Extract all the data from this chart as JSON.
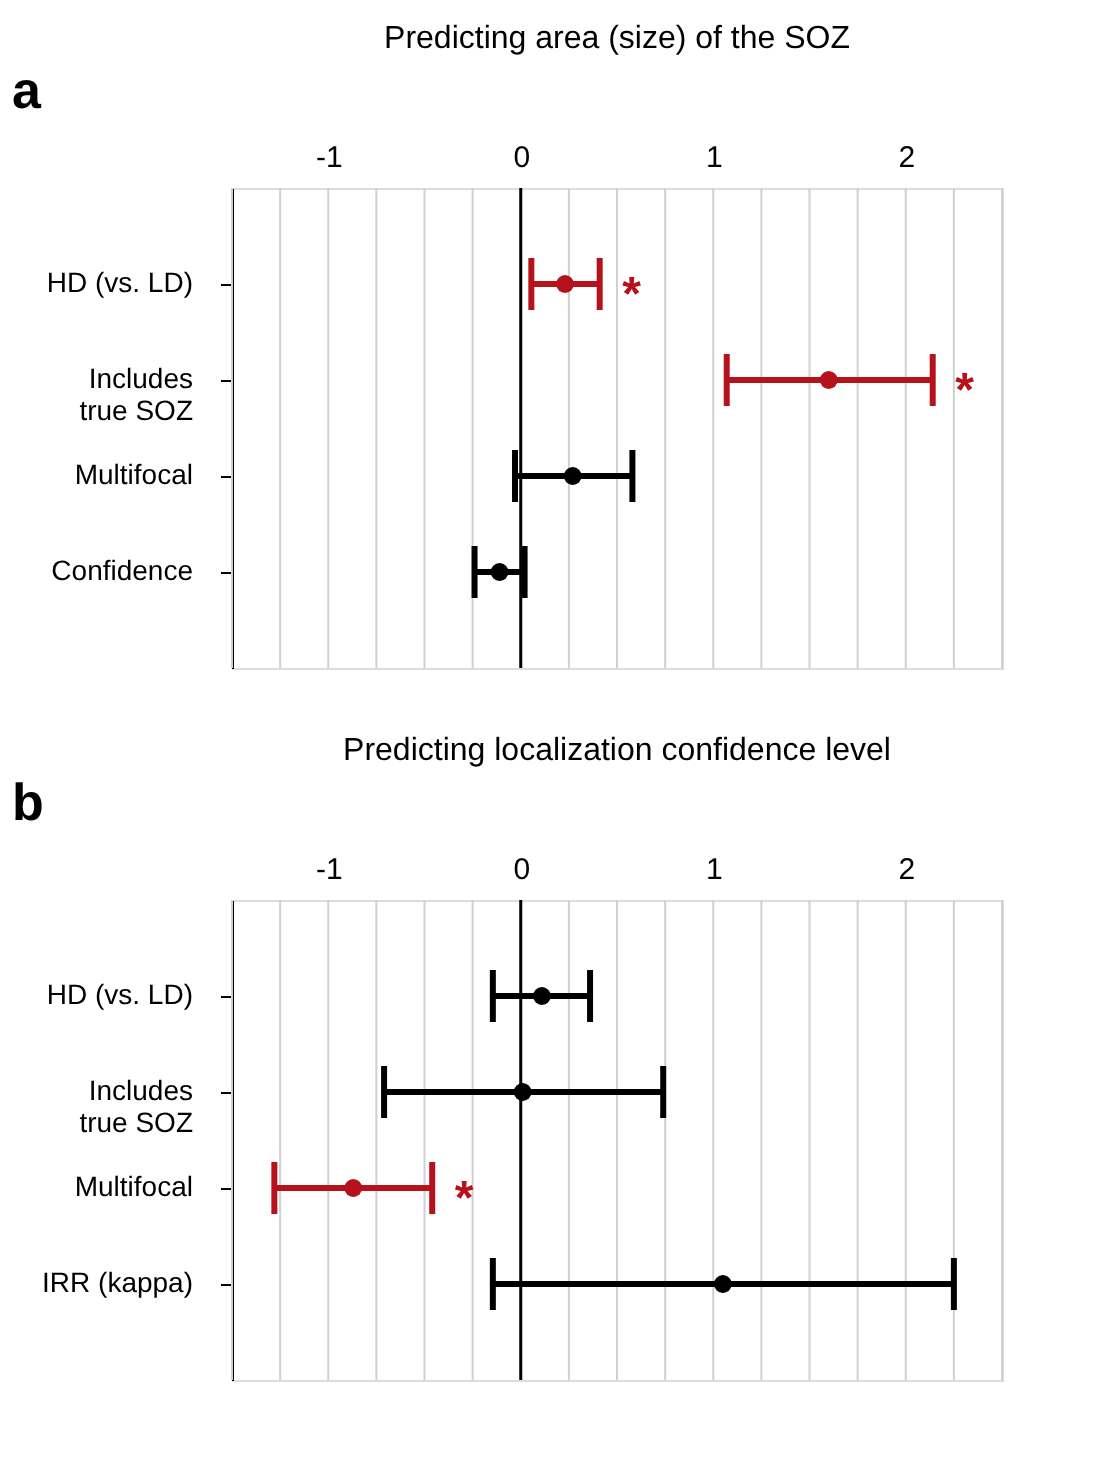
{
  "chart_data": [
    {
      "type": "scatter",
      "title": "Predicting area (size) of the SOZ",
      "annotations": [
        "a",
        {
          "text": "*",
          "x": 0.41,
          "y": "HD (vs. LD)"
        },
        {
          "text": "*",
          "x": 2.14,
          "y": "Includes true SOZ"
        }
      ],
      "categories": [
        "HD (vs. LD)",
        "Includes true SOZ",
        "Multifocal",
        "Confidence"
      ],
      "orientation": "horizontal",
      "values": [
        0.23,
        1.6,
        0.27,
        -0.11
      ],
      "errors": [
        [
          0.055,
          0.41
        ],
        [
          1.07,
          2.14
        ],
        [
          -0.03,
          0.58
        ],
        [
          -0.24,
          0.02
        ]
      ],
      "colors": [
        "#b5121b",
        "#b5121b",
        "#000000",
        "#000000"
      ],
      "marker": "circle",
      "grid": "x",
      "xlim": [
        -1.5,
        2.5
      ],
      "xticks": [
        {
          "value": -1.5,
          "label": null
        },
        {
          "value": -1.25,
          "label": null
        },
        -1,
        {
          "value": -0.75,
          "label": null
        },
        {
          "value": -0.5,
          "label": null
        },
        {
          "value": -0.25,
          "label": null
        },
        0,
        {
          "value": 0.25,
          "label": null
        },
        {
          "value": 0.5,
          "label": null
        },
        {
          "value": 0.75,
          "label": null
        },
        1,
        {
          "value": 1.25,
          "label": null
        },
        {
          "value": 1.5,
          "label": null
        },
        {
          "value": 1.75,
          "label": null
        },
        2,
        {
          "value": 2.25,
          "label": null
        },
        {
          "value": 2.5,
          "label": null
        }
      ],
      "ref_lines": [
        {
          "axis": "x",
          "value": 0,
          "color": "#000000"
        }
      ]
    },
    {
      "type": "scatter",
      "title": "Predicting localization confidence level",
      "annotations": [
        "b",
        {
          "text": "*",
          "x": -0.46,
          "y": "Multifocal"
        }
      ],
      "categories": [
        "HD (vs. LD)",
        "Includes true SOZ",
        "Multifocal",
        "IRR (kappa)"
      ],
      "orientation": "horizontal",
      "values": [
        0.11,
        0.01,
        -0.87,
        1.05
      ],
      "errors": [
        [
          -0.145,
          0.36
        ],
        [
          -0.71,
          0.74
        ],
        [
          -1.28,
          -0.46
        ],
        [
          -0.145,
          2.25
        ]
      ],
      "colors": [
        "#000000",
        "#000000",
        "#b5121b",
        "#000000"
      ],
      "marker": "circle",
      "grid": "x",
      "xlim": [
        -1.5,
        2.5
      ],
      "xticks": [
        {
          "value": -1.5,
          "label": null
        },
        {
          "value": -1.25,
          "label": null
        },
        -1,
        {
          "value": -0.75,
          "label": null
        },
        {
          "value": -0.5,
          "label": null
        },
        {
          "value": -0.25,
          "label": null
        },
        0,
        {
          "value": 0.25,
          "label": null
        },
        {
          "value": 0.5,
          "label": null
        },
        {
          "value": 0.75,
          "label": null
        },
        1,
        {
          "value": 1.25,
          "label": null
        },
        {
          "value": 1.5,
          "label": null
        },
        {
          "value": 1.75,
          "label": null
        },
        2,
        {
          "value": 2.25,
          "label": null
        },
        {
          "value": 2.5,
          "label": null
        }
      ],
      "ref_lines": [
        {
          "axis": "x",
          "value": 0,
          "color": "#000000"
        }
      ]
    }
  ]
}
